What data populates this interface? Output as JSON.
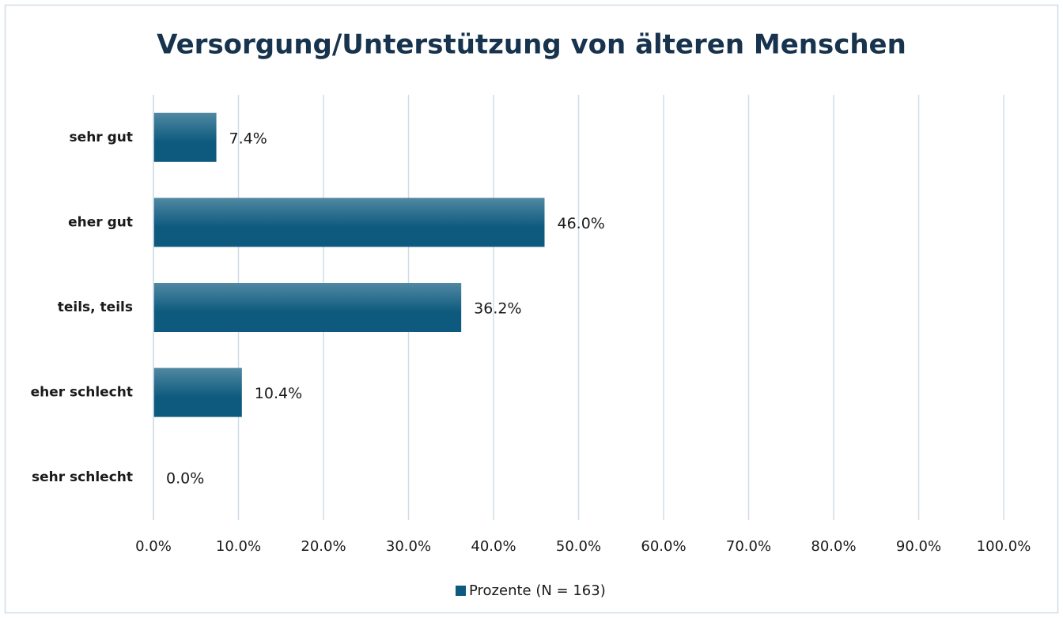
{
  "chart_data": {
    "type": "bar",
    "orientation": "horizontal",
    "title": "Versorgung/Unterstützung von älteren Menschen",
    "categories": [
      "sehr gut",
      "eher gut",
      "teils, teils",
      "eher schlecht",
      "sehr schlecht"
    ],
    "series": [
      {
        "name": "Prozente (N = 163)",
        "color": "#0d5a7e",
        "values": [
          7.4,
          46.0,
          36.2,
          10.4,
          0.0
        ],
        "value_labels": [
          "7.4%",
          "46.0%",
          "36.2%",
          "10.4%",
          "0.0%"
        ]
      }
    ],
    "xlim": [
      0,
      100
    ],
    "xticks": [
      {
        "value": 0,
        "label": "0.0%"
      },
      {
        "value": 10,
        "label": "10.0%"
      },
      {
        "value": 20,
        "label": "20.0%"
      },
      {
        "value": 30,
        "label": "30.0%"
      },
      {
        "value": 40,
        "label": "40.0%"
      },
      {
        "value": 50,
        "label": "50.0%"
      },
      {
        "value": 60,
        "label": "60.0%"
      },
      {
        "value": 70,
        "label": "70.0%"
      },
      {
        "value": 80,
        "label": "80.0%"
      },
      {
        "value": 90,
        "label": "90.0%"
      },
      {
        "value": 100,
        "label": "100.0%"
      }
    ],
    "grid": true,
    "legend": "bottom"
  }
}
